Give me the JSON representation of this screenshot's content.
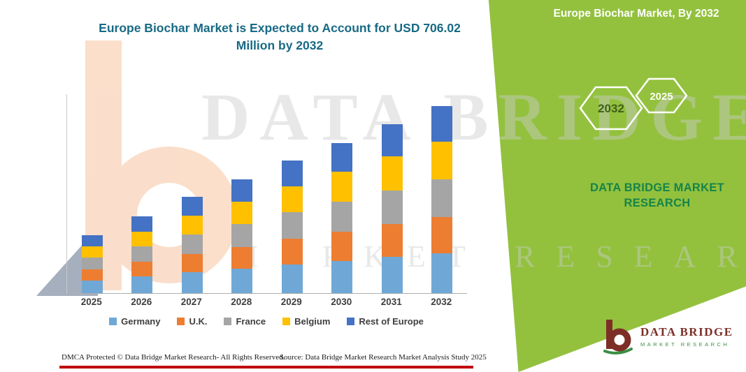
{
  "header": {
    "chart_title": "Europe Biochar Market is Expected to Account for USD 706.02 Million by 2032"
  },
  "side_panel": {
    "title": "Europe Biochar Market, By 2032",
    "hexagon_back_year": "2032",
    "hexagon_front_year": "2025",
    "brand_line1": "DATA BRIDGE MARKET",
    "brand_line2": "RESEARCH",
    "panel_color": "#93c13e",
    "brand_text_color": "#168449"
  },
  "watermark": {
    "line1": "DATA BRIDGE",
    "line2": "MARKET RESEARCH"
  },
  "chart_data": {
    "type": "bar",
    "stacked": true,
    "title": "Europe Biochar Market is Expected to Account for USD 706.02 Million by 2032",
    "unit": "USD Million",
    "categories": [
      "2025",
      "2026",
      "2027",
      "2028",
      "2029",
      "2030",
      "2031",
      "2032"
    ],
    "series": [
      {
        "name": "Germany",
        "color": "#6FA8D6",
        "values": [
          48,
          62,
          78,
          92,
          107,
          121,
          136,
          150
        ]
      },
      {
        "name": "U.K.",
        "color": "#ED7D31",
        "values": [
          42,
          56,
          70,
          83,
          97,
          110,
          124,
          137
        ]
      },
      {
        "name": "France",
        "color": "#A5A5A5",
        "values": [
          44,
          58,
          73,
          86,
          100,
          114,
          128,
          142
        ]
      },
      {
        "name": "Belgium",
        "color": "#FFC000",
        "values": [
          43,
          57,
          72,
          85,
          99,
          113,
          127,
          141
        ]
      },
      {
        "name": "Rest of Europe",
        "color": "#4472C4",
        "values": [
          41,
          56,
          69,
          82,
          96,
          109,
          123,
          136.02
        ]
      }
    ],
    "totals": [
      218,
      289,
      362,
      428,
      499,
      567,
      638,
      706.02
    ],
    "xlabel": "",
    "ylabel": "",
    "ylim": [
      0,
      750
    ],
    "grid": false,
    "legend_position": "bottom"
  },
  "footer": {
    "left": "DMCA Protected © Data Bridge Market Research-  All Rights Reserved.",
    "source": "Source: Data Bridge Market Research  Market Analysis Study 2025"
  },
  "logo": {
    "name": "DATA BRIDGE",
    "subtitle": "MARKET RESEARCH"
  }
}
